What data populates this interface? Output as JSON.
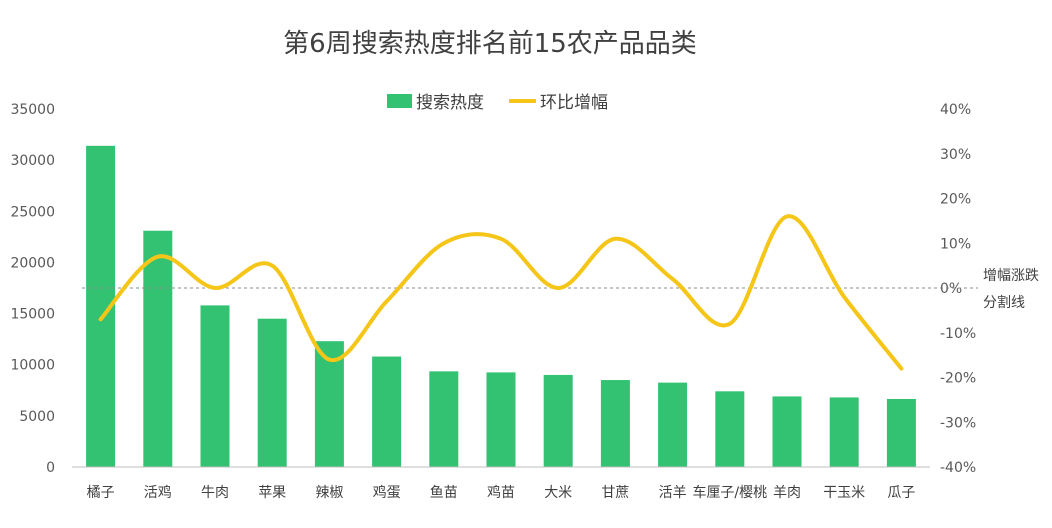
{
  "chart_data": {
    "type": "bar",
    "title": "第6周搜索热度排名前15农产品品类",
    "categories": [
      "橘子",
      "活鸡",
      "牛肉",
      "苹果",
      "辣椒",
      "鸡蛋",
      "鱼苗",
      "鸡苗",
      "大米",
      "甘蔗",
      "活羊",
      "车厘子/樱桃",
      "羊肉",
      "干玉米",
      "瓜子"
    ],
    "series": [
      {
        "name": "搜索热度",
        "type": "bar",
        "axis": "left",
        "color": "#33c272",
        "values": [
          31400,
          23100,
          15800,
          14500,
          12300,
          10800,
          9350,
          9250,
          9000,
          8500,
          8250,
          7400,
          6900,
          6800,
          6650
        ]
      },
      {
        "name": "环比增幅",
        "type": "line",
        "axis": "right",
        "color": "#f5c518",
        "unit": "%",
        "values": [
          -7,
          7,
          0,
          5,
          -16,
          -3,
          10,
          11,
          0,
          11,
          2,
          -8,
          16,
          -2,
          -18
        ]
      }
    ],
    "y_left": {
      "min": 0,
      "max": 35000,
      "ticks": [
        "0",
        "5000",
        "10000",
        "15000",
        "20000",
        "25000",
        "30000",
        "35000"
      ]
    },
    "y_right": {
      "min": -40,
      "max": 40,
      "ticks": [
        "-40%",
        "-30%",
        "-20%",
        "-10%",
        "0%",
        "10%",
        "20%",
        "30%",
        "40%"
      ]
    },
    "reference_line": {
      "value": 0,
      "axis": "right",
      "label_line1": "增幅涨跌",
      "label_line2": "分割线"
    },
    "legend": {
      "position": "top-center",
      "items": [
        "搜索热度",
        "环比增幅"
      ]
    },
    "grid": false
  }
}
